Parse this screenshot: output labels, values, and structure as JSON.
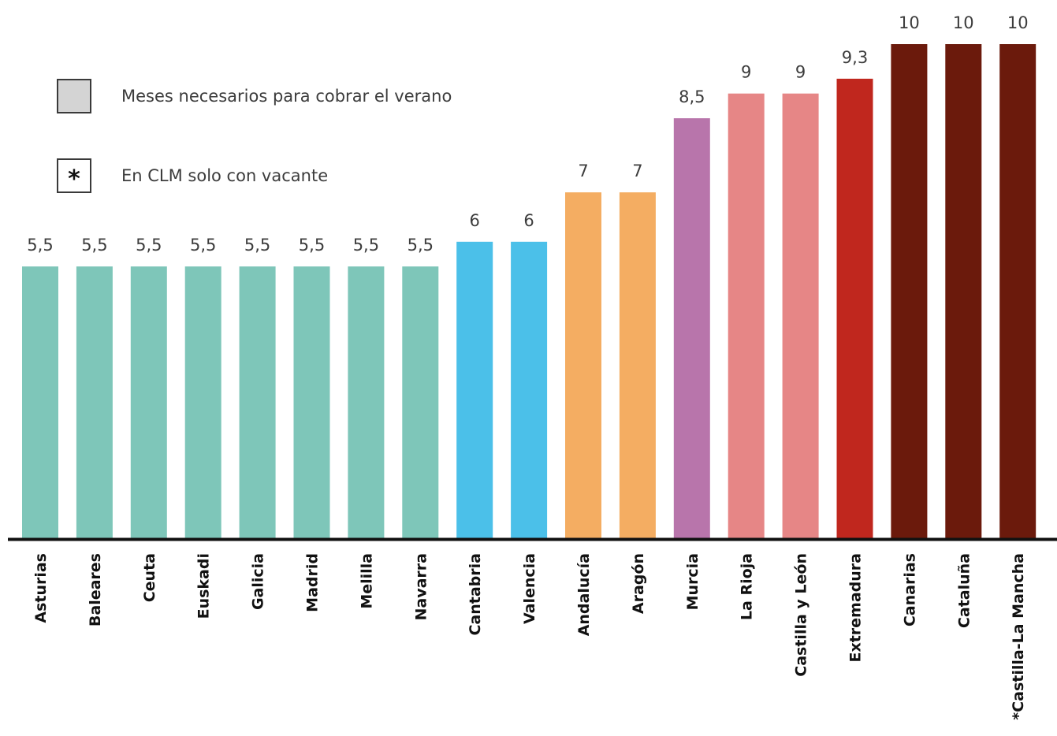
{
  "legend": {
    "swatch_label": "Meses necesarios para cobrar el verano",
    "star_symbol": "*",
    "star_label": "En CLM solo con vacante"
  },
  "chart_data": {
    "type": "bar",
    "title": "",
    "xlabel": "",
    "ylabel": "",
    "ylim": [
      0,
      10
    ],
    "grid": false,
    "categories": [
      "Asturias",
      "Baleares",
      "Ceuta",
      "Euskadi",
      "Galicia",
      "Madrid",
      "Melilla",
      "Navarra",
      "Cantabria",
      "Valencia",
      "Andalucía",
      "Aragón",
      "Murcia",
      "La Rioja",
      "Castilla y León",
      "Extremadura",
      "Canarias",
      "Cataluña",
      "*Castilla-La Mancha"
    ],
    "values": [
      5.5,
      5.5,
      5.5,
      5.5,
      5.5,
      5.5,
      5.5,
      5.5,
      6,
      6,
      7,
      7,
      8.5,
      9,
      9,
      9.3,
      10,
      10,
      10
    ],
    "value_labels": [
      "5,5",
      "5,5",
      "5,5",
      "5,5",
      "5,5",
      "5,5",
      "5,5",
      "5,5",
      "6",
      "6",
      "7",
      "7",
      "8,5",
      "9",
      "9",
      "9,3",
      "10",
      "10",
      "10"
    ],
    "colors": [
      "#7ec6b9",
      "#7ec6b9",
      "#7ec6b9",
      "#7ec6b9",
      "#7ec6b9",
      "#7ec6b9",
      "#7ec6b9",
      "#7ec6b9",
      "#4bc0e9",
      "#4bc0e9",
      "#f4ad62",
      "#f4ad62",
      "#b875ab",
      "#e68686",
      "#e68686",
      "#c0271e",
      "#6b1a0c",
      "#6b1a0c",
      "#6b1a0c"
    ],
    "axis_color": "#111111"
  }
}
